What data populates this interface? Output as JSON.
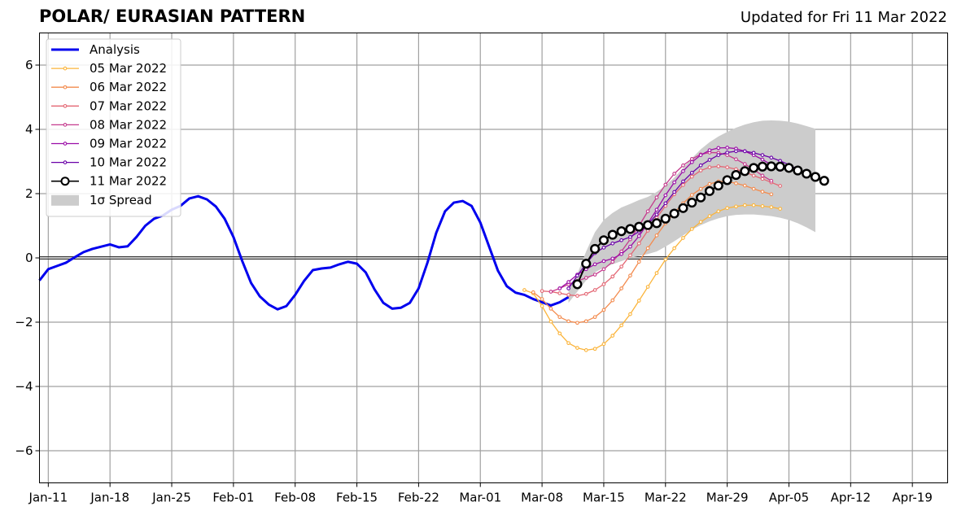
{
  "chart_data": {
    "type": "line",
    "title": "POLAR/ EURASIAN  PATTERN",
    "subtitle": "Updated for Fri 11 Mar 2022",
    "xlabel": "",
    "ylabel": "",
    "ylim": [
      -7,
      7
    ],
    "xlim": [
      "2022-01-10",
      "2022-04-23"
    ],
    "y_ticks": [
      -6,
      -4,
      -2,
      0,
      2,
      4,
      6
    ],
    "y_tick_labels": [
      "−6",
      "−4",
      "−2",
      "0",
      "2",
      "4",
      "6"
    ],
    "x_ticks": [
      "2022-01-11",
      "2022-01-18",
      "2022-01-25",
      "2022-02-01",
      "2022-02-08",
      "2022-02-15",
      "2022-02-22",
      "2022-03-01",
      "2022-03-08",
      "2022-03-15",
      "2022-03-22",
      "2022-03-29",
      "2022-04-05",
      "2022-04-12",
      "2022-04-19"
    ],
    "x_tick_labels": [
      "Jan-11",
      "Jan-18",
      "Jan-25",
      "Feb-01",
      "Feb-08",
      "Feb-15",
      "Feb-22",
      "Mar-01",
      "Mar-08",
      "Mar-15",
      "Mar-22",
      "Mar-29",
      "Apr-05",
      "Apr-12",
      "Apr-19"
    ],
    "grid": true,
    "legend_position": "top-left",
    "zero_line": true,
    "analysis": {
      "name": "Analysis",
      "color": "#0000ee",
      "x": [
        "2022-01-10",
        "2022-01-11",
        "2022-01-12",
        "2022-01-13",
        "2022-01-14",
        "2022-01-15",
        "2022-01-16",
        "2022-01-17",
        "2022-01-18",
        "2022-01-19",
        "2022-01-20",
        "2022-01-21",
        "2022-01-22",
        "2022-01-23",
        "2022-01-24",
        "2022-01-25",
        "2022-01-26",
        "2022-01-27",
        "2022-01-28",
        "2022-01-29",
        "2022-01-30",
        "2022-01-31",
        "2022-02-01",
        "2022-02-02",
        "2022-02-03",
        "2022-02-04",
        "2022-02-05",
        "2022-02-06",
        "2022-02-07",
        "2022-02-08",
        "2022-02-09",
        "2022-02-10",
        "2022-02-11",
        "2022-02-12",
        "2022-02-13",
        "2022-02-14",
        "2022-02-15",
        "2022-02-16",
        "2022-02-17",
        "2022-02-18",
        "2022-02-19",
        "2022-02-20",
        "2022-02-21",
        "2022-02-22",
        "2022-02-23",
        "2022-02-24",
        "2022-02-25",
        "2022-02-26",
        "2022-02-27",
        "2022-02-28",
        "2022-03-01",
        "2022-03-02",
        "2022-03-03",
        "2022-03-04",
        "2022-03-05",
        "2022-03-06",
        "2022-03-07",
        "2022-03-08",
        "2022-03-09",
        "2022-03-10",
        "2022-03-11"
      ],
      "values": [
        -0.7,
        -0.35,
        -0.25,
        -0.15,
        0.02,
        0.18,
        0.28,
        0.35,
        0.42,
        0.33,
        0.36,
        0.65,
        1.0,
        1.22,
        1.32,
        1.5,
        1.62,
        1.85,
        1.92,
        1.82,
        1.6,
        1.22,
        0.65,
        -0.1,
        -0.78,
        -1.2,
        -1.45,
        -1.6,
        -1.5,
        -1.15,
        -0.72,
        -0.38,
        -0.33,
        -0.3,
        -0.2,
        -0.12,
        -0.18,
        -0.45,
        -0.98,
        -1.4,
        -1.58,
        -1.55,
        -1.4,
        -0.95,
        -0.15,
        0.78,
        1.45,
        1.72,
        1.77,
        1.62,
        1.1,
        0.35,
        -0.4,
        -0.88,
        -1.08,
        -1.15,
        -1.28,
        -1.38,
        -1.48,
        -1.38,
        -1.22
      ]
    },
    "forecasts": [
      {
        "name": "05 Mar 2022",
        "color": "#fbb43a",
        "start": "2022-03-06",
        "values": [
          -1.0,
          -1.1,
          -1.5,
          -1.98,
          -2.35,
          -2.65,
          -2.8,
          -2.87,
          -2.83,
          -2.68,
          -2.42,
          -2.1,
          -1.75,
          -1.33,
          -0.9,
          -0.47,
          -0.05,
          0.3,
          0.62,
          0.9,
          1.12,
          1.3,
          1.45,
          1.55,
          1.6,
          1.64,
          1.64,
          1.61,
          1.58,
          1.53
        ]
      },
      {
        "name": "06 Mar 2022",
        "color": "#f38b4e",
        "start": "2022-03-07",
        "values": [
          -1.07,
          -1.28,
          -1.58,
          -1.84,
          -1.97,
          -2.02,
          -1.97,
          -1.84,
          -1.62,
          -1.32,
          -0.95,
          -0.55,
          -0.12,
          0.3,
          0.7,
          1.08,
          1.4,
          1.7,
          1.96,
          2.15,
          2.3,
          2.38,
          2.38,
          2.32,
          2.25,
          2.15,
          2.06,
          1.98
        ]
      },
      {
        "name": "07 Mar 2022",
        "color": "#e46774",
        "start": "2022-03-08",
        "values": [
          -1.03,
          -1.05,
          -1.1,
          -1.15,
          -1.18,
          -1.12,
          -1.0,
          -0.82,
          -0.58,
          -0.27,
          0.08,
          0.45,
          0.85,
          1.25,
          1.62,
          1.98,
          2.27,
          2.53,
          2.72,
          2.82,
          2.85,
          2.82,
          2.76,
          2.67,
          2.56,
          2.46,
          2.35,
          2.24
        ]
      },
      {
        "name": "08 Mar 2022",
        "color": "#c53b8e",
        "start": "2022-03-09",
        "values": [
          -1.05,
          -0.95,
          -0.82,
          -0.72,
          -0.62,
          -0.52,
          -0.35,
          -0.12,
          0.2,
          0.58,
          1.0,
          1.45,
          1.88,
          2.28,
          2.62,
          2.88,
          3.08,
          3.22,
          3.28,
          3.27,
          3.2,
          3.07,
          2.92,
          2.75,
          2.56,
          2.4
        ]
      },
      {
        "name": "09 Mar 2022",
        "color": "#9b0ca7",
        "start": "2022-03-10",
        "values": [
          -0.95,
          -0.75,
          -0.52,
          -0.35,
          -0.2,
          -0.1,
          -0.02,
          0.12,
          0.35,
          0.68,
          1.08,
          1.5,
          1.95,
          2.35,
          2.7,
          2.98,
          3.2,
          3.35,
          3.42,
          3.43,
          3.4,
          3.32,
          3.2,
          3.06,
          2.9,
          2.74
        ]
      },
      {
        "name": "10 Mar 2022",
        "color": "#6a00a8",
        "start": "2022-03-11",
        "values": [
          -0.95,
          -0.55,
          -0.18,
          0.15,
          0.32,
          0.45,
          0.55,
          0.65,
          0.82,
          1.05,
          1.35,
          1.7,
          2.05,
          2.38,
          2.65,
          2.88,
          3.05,
          3.2,
          3.28,
          3.32,
          3.32,
          3.27,
          3.2,
          3.12,
          3.02,
          2.9,
          2.75
        ]
      },
      {
        "name": "11 Mar 2022",
        "color": "#000000",
        "start": "2022-03-12",
        "marker": "open-circle",
        "values": [
          -0.82,
          -0.18,
          0.28,
          0.55,
          0.72,
          0.83,
          0.9,
          0.97,
          1.02,
          1.08,
          1.22,
          1.38,
          1.55,
          1.72,
          1.88,
          2.08,
          2.25,
          2.42,
          2.58,
          2.7,
          2.8,
          2.84,
          2.85,
          2.84,
          2.8,
          2.72,
          2.62,
          2.52,
          2.4
        ]
      }
    ],
    "spread": {
      "name": "1σ Spread",
      "color": "#cccccc",
      "x": [
        "2022-03-11",
        "2022-03-12",
        "2022-03-13",
        "2022-03-14",
        "2022-03-15",
        "2022-03-16",
        "2022-03-17",
        "2022-03-18",
        "2022-03-19",
        "2022-03-20",
        "2022-03-21",
        "2022-03-22",
        "2022-03-23",
        "2022-03-24",
        "2022-03-25",
        "2022-03-26",
        "2022-03-27",
        "2022-03-28",
        "2022-03-29",
        "2022-03-30",
        "2022-03-31",
        "2022-04-01",
        "2022-04-02",
        "2022-04-03",
        "2022-04-04",
        "2022-04-05",
        "2022-04-06",
        "2022-04-07",
        "2022-04-08"
      ],
      "upper": [
        -1.0,
        -0.5,
        0.2,
        0.8,
        1.18,
        1.4,
        1.57,
        1.68,
        1.8,
        1.9,
        2.05,
        2.25,
        2.5,
        2.8,
        3.1,
        3.38,
        3.6,
        3.78,
        3.92,
        4.05,
        4.15,
        4.22,
        4.27,
        4.28,
        4.27,
        4.24,
        4.18,
        4.1,
        4.02
      ],
      "lower": [
        -1.4,
        -1.05,
        -0.7,
        -0.45,
        -0.3,
        -0.2,
        -0.1,
        0.0,
        0.06,
        0.12,
        0.2,
        0.35,
        0.52,
        0.7,
        0.88,
        1.02,
        1.14,
        1.23,
        1.3,
        1.34,
        1.35,
        1.35,
        1.33,
        1.3,
        1.25,
        1.18,
        1.08,
        0.95,
        0.8
      ]
    }
  }
}
